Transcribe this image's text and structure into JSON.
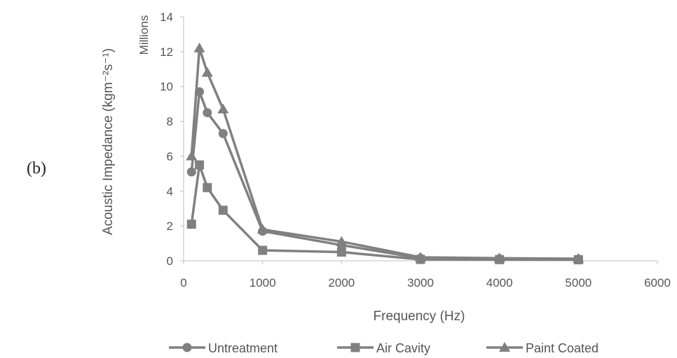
{
  "panel_label": "(b)",
  "chart_data": {
    "type": "line",
    "xlabel": "Frequency (Hz)",
    "ylabel": "Acoustic Impedance (kgm⁻²s⁻¹)",
    "y_unit_label": "Millions",
    "xlim": [
      0,
      6000
    ],
    "ylim": [
      0,
      14
    ],
    "x_ticks": [
      0,
      1000,
      2000,
      3000,
      4000,
      5000,
      6000
    ],
    "y_ticks": [
      0,
      2,
      4,
      6,
      8,
      10,
      12,
      14
    ],
    "grid": false,
    "legend_position": "bottom",
    "line_color": "#808080",
    "series": [
      {
        "name": "Untreatment",
        "marker": "circle",
        "x": [
          100,
          200,
          300,
          500,
          1000,
          2000,
          3000,
          4000,
          5000
        ],
        "y": [
          5.1,
          9.7,
          8.5,
          7.3,
          1.7,
          0.9,
          0.15,
          0.12,
          0.1
        ]
      },
      {
        "name": "Air Cavity",
        "marker": "square",
        "x": [
          100,
          200,
          300,
          500,
          1000,
          2000,
          3000,
          4000,
          5000
        ],
        "y": [
          2.1,
          5.5,
          4.2,
          2.9,
          0.6,
          0.5,
          0.08,
          0.07,
          0.06
        ]
      },
      {
        "name": "Paint Coated",
        "marker": "triangle",
        "x": [
          100,
          200,
          300,
          500,
          1000,
          2000,
          3000,
          4000,
          5000
        ],
        "y": [
          6.0,
          12.2,
          10.8,
          8.7,
          1.8,
          1.1,
          0.2,
          0.15,
          0.12
        ]
      }
    ]
  }
}
